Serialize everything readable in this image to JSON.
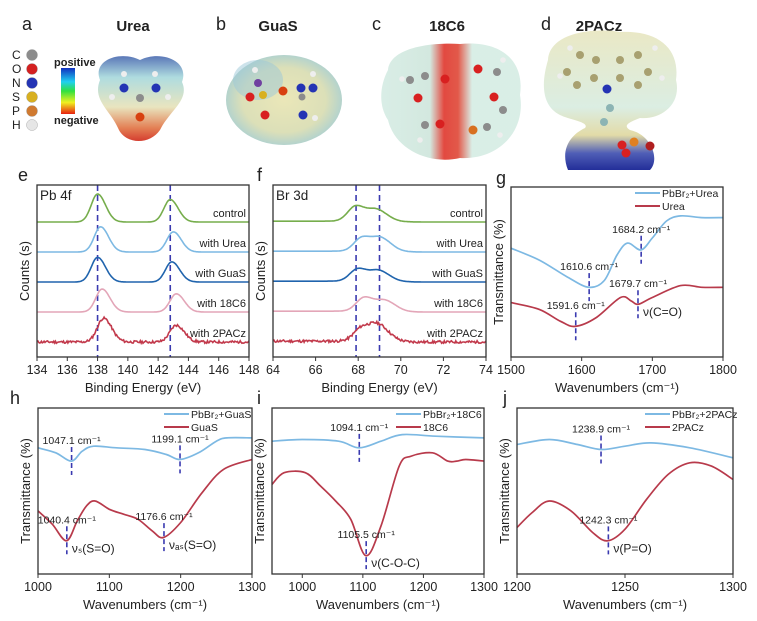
{
  "molecules": {
    "panels": [
      {
        "letter": "a",
        "title": "Urea"
      },
      {
        "letter": "b",
        "title": "GuaS"
      },
      {
        "letter": "c",
        "title": "18C6"
      },
      {
        "letter": "d",
        "title": "2PACz"
      }
    ],
    "element_legend": [
      {
        "symbol": "C",
        "color": "#8c8c8c"
      },
      {
        "symbol": "O",
        "color": "#d42020"
      },
      {
        "symbol": "N",
        "color": "#2434b4"
      },
      {
        "symbol": "S",
        "color": "#d8b020"
      },
      {
        "symbol": "P",
        "color": "#d07a30"
      },
      {
        "symbol": "H",
        "color": "#e6e6e6"
      }
    ],
    "colorbar": {
      "top_label": "positive",
      "bottom_label": "negative",
      "colors": [
        "#1030c0",
        "#20d0f0",
        "#30e040",
        "#f0f020",
        "#e82010"
      ]
    }
  },
  "chart_data": [
    {
      "panel": "e",
      "type": "line",
      "inset_label": "Pb 4f",
      "xlabel": "Binding Energy (eV)",
      "ylabel": "Counts (s)",
      "xlim": [
        134,
        148
      ],
      "xticks": [
        134,
        136,
        138,
        140,
        142,
        144,
        146,
        148
      ],
      "reference_lines": [
        138.0,
        142.8
      ],
      "series": [
        {
          "name": "control",
          "color": "#76ad4c",
          "peaks": [
            {
              "position": 138.0,
              "intensity": 1.0
            },
            {
              "position": 142.8,
              "intensity": 0.8
            }
          ]
        },
        {
          "name": "with Urea",
          "color": "#7db9e3",
          "peaks": [
            {
              "position": 138.2,
              "intensity": 0.9
            },
            {
              "position": 143.0,
              "intensity": 0.72
            }
          ]
        },
        {
          "name": "with GuaS",
          "color": "#2064ad",
          "peaks": [
            {
              "position": 138.0,
              "intensity": 0.88
            },
            {
              "position": 142.9,
              "intensity": 0.72
            }
          ]
        },
        {
          "name": "with 18C6",
          "color": "#e3a6b8",
          "peaks": [
            {
              "position": 138.3,
              "intensity": 0.82
            },
            {
              "position": 143.2,
              "intensity": 0.65
            }
          ]
        },
        {
          "name": "with 2PACz",
          "color": "#c23a4c",
          "peaks": [
            {
              "position": 138.4,
              "intensity": 0.85
            },
            {
              "position": 143.2,
              "intensity": 0.6
            }
          ],
          "noisy": true
        }
      ]
    },
    {
      "panel": "f",
      "type": "line",
      "inset_label": "Br 3d",
      "xlabel": "Binding Energy (eV)",
      "ylabel": "Counts (s)",
      "xlim": [
        64,
        74
      ],
      "xticks": [
        64,
        66,
        68,
        70,
        72,
        74
      ],
      "reference_lines": [
        67.9,
        69.0
      ],
      "series": [
        {
          "name": "control",
          "color": "#76ad4c",
          "peaks": [
            {
              "position": 67.9,
              "intensity": 0.55
            },
            {
              "position": 68.9,
              "intensity": 0.38
            }
          ]
        },
        {
          "name": "with Urea",
          "color": "#7db9e3",
          "peaks": [
            {
              "position": 68.2,
              "intensity": 0.5
            },
            {
              "position": 69.1,
              "intensity": 0.42
            }
          ]
        },
        {
          "name": "with GuaS",
          "color": "#2064ad",
          "peaks": [
            {
              "position": 68.0,
              "intensity": 0.45
            },
            {
              "position": 69.0,
              "intensity": 0.35
            }
          ]
        },
        {
          "name": "with 18C6",
          "color": "#e3a6b8",
          "peaks": [
            {
              "position": 68.3,
              "intensity": 0.5
            },
            {
              "position": 69.3,
              "intensity": 0.35
            }
          ]
        },
        {
          "name": "with 2PACz",
          "color": "#c23a4c",
          "peaks": [
            {
              "position": 68.2,
              "intensity": 0.5
            },
            {
              "position": 69.0,
              "intensity": 0.5
            }
          ],
          "noisy": true
        }
      ]
    },
    {
      "panel": "g",
      "type": "line",
      "xlabel": "Wavenumbers (cm⁻¹)",
      "ylabel": "Transmittance (%)",
      "xlim": [
        1500,
        1800
      ],
      "xticks": [
        1500,
        1600,
        1700,
        1800
      ],
      "ylim": [
        0,
        100
      ],
      "series": [
        {
          "name": "PbBr₂+Urea",
          "color": "#7db9e3",
          "points": [
            [
              1500,
              64
            ],
            [
              1540,
              57
            ],
            [
              1580,
              47
            ],
            [
              1610,
              41
            ],
            [
              1632,
              45
            ],
            [
              1650,
              60
            ],
            [
              1665,
              67
            ],
            [
              1684,
              63
            ],
            [
              1700,
              70
            ],
            [
              1720,
              80
            ],
            [
              1740,
              83
            ],
            [
              1770,
              82
            ],
            [
              1800,
              82
            ]
          ]
        },
        {
          "name": "Urea",
          "color": "#b83a4b",
          "points": [
            [
              1500,
              32
            ],
            [
              1540,
              28
            ],
            [
              1570,
              21
            ],
            [
              1591,
              18
            ],
            [
              1620,
              23
            ],
            [
              1655,
              35
            ],
            [
              1670,
              33
            ],
            [
              1680,
              31
            ],
            [
              1700,
              35
            ],
            [
              1740,
              42
            ],
            [
              1770,
              41
            ],
            [
              1800,
              41
            ]
          ]
        }
      ],
      "annotations": [
        {
          "series": 0,
          "wavenumber": 1610.6,
          "label": "1610.6 cm⁻¹"
        },
        {
          "series": 0,
          "wavenumber": 1684.2,
          "label": "1684.2 cm⁻¹"
        },
        {
          "series": 1,
          "wavenumber": 1591.6,
          "label": "1591.6 cm⁻¹"
        },
        {
          "series": 1,
          "wavenumber": 1679.7,
          "label": "1679.7 cm⁻¹",
          "mode": "ν(C=O)"
        }
      ]
    },
    {
      "panel": "h",
      "type": "line",
      "xlabel": "Wavenumbers (cm⁻¹)",
      "ylabel": "Transmittance (%)",
      "xlim": [
        1000,
        1300
      ],
      "xticks": [
        1000,
        1100,
        1200,
        1300
      ],
      "ylim": [
        0,
        100
      ],
      "series": [
        {
          "name": "PbBr₂+GuaS",
          "color": "#7db9e3",
          "points": [
            [
              1000,
              76
            ],
            [
              1025,
              73
            ],
            [
              1047,
              68
            ],
            [
              1062,
              74
            ],
            [
              1078,
              77
            ],
            [
              1110,
              76
            ],
            [
              1150,
              75
            ],
            [
              1180,
              72
            ],
            [
              1199,
              69
            ],
            [
              1225,
              73
            ],
            [
              1250,
              80
            ],
            [
              1265,
              82
            ],
            [
              1300,
              82
            ]
          ]
        },
        {
          "name": "GuaS",
          "color": "#b83a4b",
          "points": [
            [
              1000,
              38
            ],
            [
              1020,
              30
            ],
            [
              1040,
              20
            ],
            [
              1055,
              32
            ],
            [
              1068,
              41
            ],
            [
              1080,
              44
            ],
            [
              1100,
              39
            ],
            [
              1120,
              36
            ],
            [
              1140,
              33
            ],
            [
              1160,
              26
            ],
            [
              1176,
              22
            ],
            [
              1200,
              31
            ],
            [
              1230,
              49
            ],
            [
              1260,
              63
            ],
            [
              1300,
              69
            ]
          ]
        }
      ],
      "annotations": [
        {
          "series": 0,
          "wavenumber": 1047.1,
          "label": "1047.1 cm⁻¹"
        },
        {
          "series": 0,
          "wavenumber": 1199.1,
          "label": "1199.1 cm⁻¹"
        },
        {
          "series": 1,
          "wavenumber": 1040.4,
          "label": "1040.4 cm⁻¹",
          "mode": "νₛ(S=O)"
        },
        {
          "series": 1,
          "wavenumber": 1176.6,
          "label": "1176.6 cm⁻¹",
          "mode": "νₐₛ(S=O)"
        }
      ]
    },
    {
      "panel": "i",
      "type": "line",
      "xlabel": "Wavenumbers (cm⁻¹)",
      "ylabel": "Transmittance (%)",
      "xlim": [
        950,
        1300
      ],
      "xticks": [
        1000,
        1100,
        1200,
        1300
      ],
      "ylim": [
        0,
        100
      ],
      "series": [
        {
          "name": "PbBr₂+18C6",
          "color": "#7db9e3",
          "points": [
            [
              950,
              80
            ],
            [
              1000,
              81
            ],
            [
              1060,
              80
            ],
            [
              1094,
              76
            ],
            [
              1130,
              80
            ],
            [
              1165,
              84
            ],
            [
              1220,
              83
            ],
            [
              1300,
              82
            ]
          ]
        },
        {
          "name": "18C6",
          "color": "#b83a4b",
          "points": [
            [
              950,
              54
            ],
            [
              970,
              61
            ],
            [
              1005,
              61
            ],
            [
              1030,
              53
            ],
            [
              1055,
              44
            ],
            [
              1080,
              33
            ],
            [
              1105,
              11
            ],
            [
              1130,
              29
            ],
            [
              1160,
              65
            ],
            [
              1180,
              71
            ],
            [
              1215,
              73
            ],
            [
              1240,
              68
            ],
            [
              1255,
              68
            ],
            [
              1270,
              69
            ],
            [
              1300,
              68
            ]
          ]
        }
      ],
      "annotations": [
        {
          "series": 0,
          "wavenumber": 1094.1,
          "label": "1094.1 cm⁻¹"
        },
        {
          "series": 1,
          "wavenumber": 1105.5,
          "label": "1105.5 cm⁻¹",
          "mode": "ν(C-O-C)"
        }
      ]
    },
    {
      "panel": "j",
      "type": "line",
      "xlabel": "Wavenumbers (cm⁻¹)",
      "ylabel": "Transmittance (%)",
      "xlim": [
        1200,
        1300
      ],
      "xticks": [
        1200,
        1250,
        1300
      ],
      "ylim": [
        0,
        100
      ],
      "series": [
        {
          "name": "PbBr₂+2PACz",
          "color": "#7db9e3",
          "points": [
            [
              1200,
              78
            ],
            [
              1215,
              81
            ],
            [
              1228,
              78
            ],
            [
              1239,
              75
            ],
            [
              1250,
              77
            ],
            [
              1262,
              79
            ],
            [
              1280,
              76
            ],
            [
              1300,
              70
            ]
          ]
        },
        {
          "name": "2PACz",
          "color": "#b83a4b",
          "points": [
            [
              1200,
              28
            ],
            [
              1207,
              37
            ],
            [
              1215,
              44
            ],
            [
              1225,
              38
            ],
            [
              1235,
              25
            ],
            [
              1242,
              20
            ],
            [
              1250,
              27
            ],
            [
              1260,
              45
            ],
            [
              1270,
              60
            ],
            [
              1280,
              67
            ],
            [
              1290,
              65
            ],
            [
              1300,
              57
            ]
          ]
        }
      ],
      "annotations": [
        {
          "series": 0,
          "wavenumber": 1238.9,
          "label": "1238.9 cm⁻¹"
        },
        {
          "series": 1,
          "wavenumber": 1242.3,
          "label": "1242.3 cm⁻¹",
          "mode": "ν(P=O)"
        }
      ]
    }
  ],
  "colors": {
    "reference_line": "#3a3ab0",
    "axis": "#333333"
  }
}
